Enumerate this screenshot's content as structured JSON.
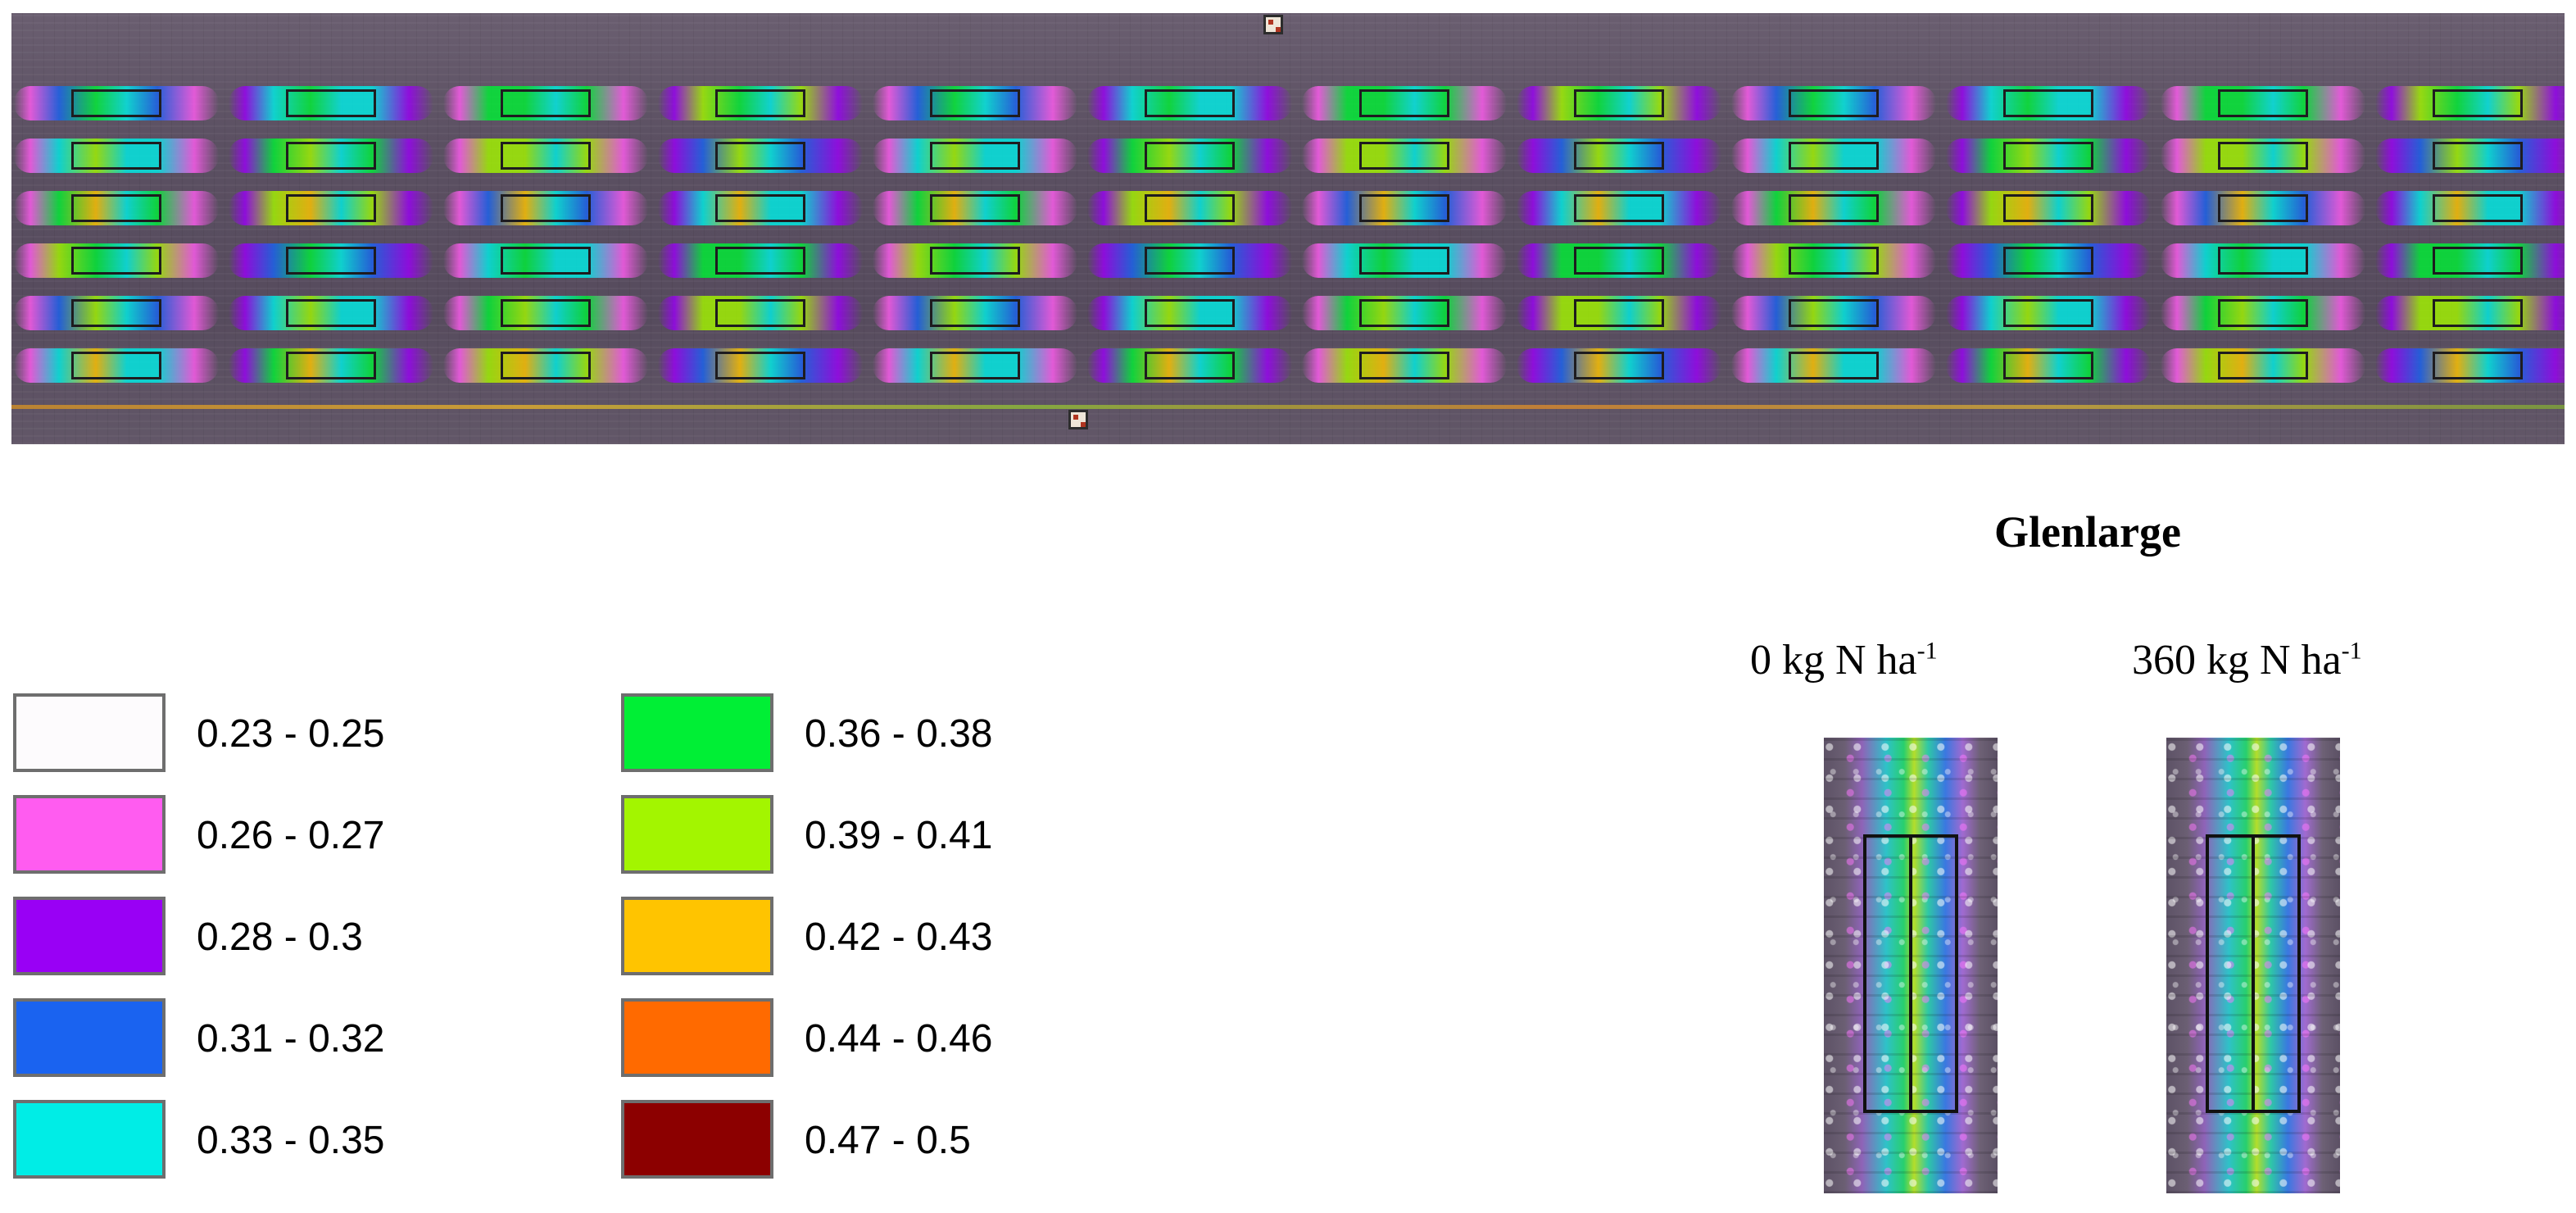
{
  "legend": {
    "classes": [
      {
        "label": "0.23 - 0.25",
        "color": "#fdfbfd"
      },
      {
        "label": "0.26 - 0.27",
        "color": "#ff5cf0"
      },
      {
        "label": "0.28 - 0.3",
        "color": "#9900f5"
      },
      {
        "label": "0.31 - 0.32",
        "color": "#1a63f0"
      },
      {
        "label": "0.33 - 0.35",
        "color": "#00ede6"
      },
      {
        "label": "0.36 - 0.38",
        "color": "#00ef35"
      },
      {
        "label": "0.39 - 0.41",
        "color": "#a3f500"
      },
      {
        "label": "0.42 - 0.43",
        "color": "#ffc400"
      },
      {
        "label": "0.44 - 0.46",
        "color": "#ff6a00"
      },
      {
        "label": "0.47 - 0.5",
        "color": "#8c0000"
      }
    ]
  },
  "inset": {
    "title": "Glenlarge",
    "treatments": [
      {
        "label": "0 kg N ha",
        "superscript": "-1"
      },
      {
        "label": "360 kg N ha",
        "superscript": "-1"
      }
    ]
  },
  "field": {
    "columns": 12,
    "rows": 6
  }
}
